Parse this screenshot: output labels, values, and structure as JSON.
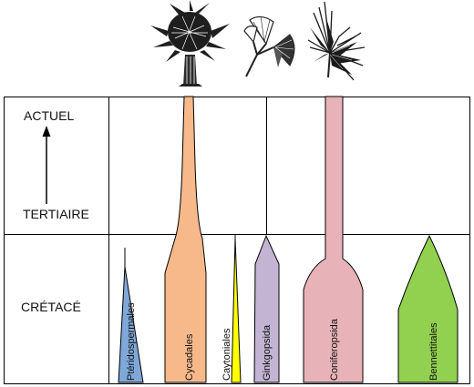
{
  "periods": {
    "actuel": "ACTUEL",
    "tertiaire": "TERTIAIRE",
    "cretace": "CRÉTACÉ"
  },
  "groups": [
    {
      "id": "pteridospermales",
      "label": "Ptéridospermales",
      "color": "#7fa7d8",
      "icon": "none"
    },
    {
      "id": "cycadales",
      "label": "Cycadales",
      "color": "#f7b98a",
      "icon": "palm-tree-icon"
    },
    {
      "id": "caytoniales",
      "label": "Caytoniales",
      "color": "#ffff00",
      "icon": "none"
    },
    {
      "id": "ginkgopsida",
      "label": "Ginkgopsida",
      "color": "#c2b4d2",
      "icon": "ginkgo-leaf-icon"
    },
    {
      "id": "coniferopsida",
      "label": "Coniferopsida",
      "color": "#e7b3b8",
      "icon": "conifer-branch-icon"
    },
    {
      "id": "bennettitales",
      "label": "Bennettitales",
      "color": "#92d050",
      "icon": "none"
    }
  ],
  "axis": {
    "arrow_direction": "up"
  }
}
